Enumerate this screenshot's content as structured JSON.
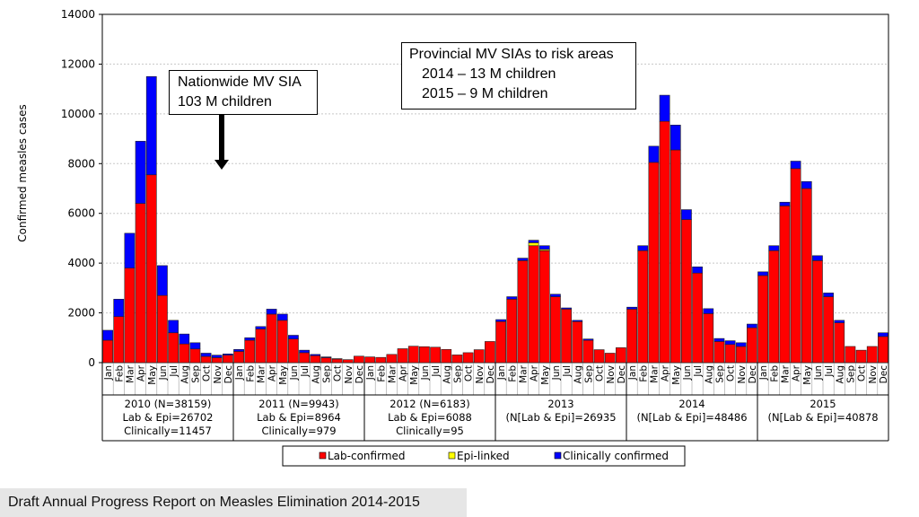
{
  "chart_data": {
    "type": "bar",
    "stacked": true,
    "title": "",
    "ylabel": "Confirmed measles cases",
    "ylim": [
      0,
      14000
    ],
    "yticks": [
      "0",
      "2000",
      "4000",
      "6000",
      "8000",
      "10000",
      "12000",
      "14000"
    ],
    "months": [
      "Jan",
      "Feb",
      "Mar",
      "Apr",
      "May",
      "Jun",
      "Jul",
      "Aug",
      "Sep",
      "Oct",
      "Nov",
      "Dec"
    ],
    "groups": [
      {
        "lines": [
          "2010 (N=38159)",
          "Lab & Epi=26702",
          "Clinically=11457"
        ]
      },
      {
        "lines": [
          "2011 (N=9943)",
          "Lab & Epi=8964",
          "Clinically=979"
        ]
      },
      {
        "lines": [
          "2012 (N=6183)",
          "Lab & Epi=6088",
          "Clinically=95"
        ]
      },
      {
        "lines": [
          "2013",
          "(N[Lab & Epi]=26935"
        ]
      },
      {
        "lines": [
          "2014",
          "(N[Lab & Epi]=48486"
        ]
      },
      {
        "lines": [
          "2015",
          "(N[Lab & Epi]=40878"
        ]
      }
    ],
    "series": [
      {
        "name": "Lab-confirmed",
        "color": "#ff0000",
        "values": [
          900,
          1850,
          3800,
          6400,
          7550,
          2700,
          1200,
          750,
          550,
          250,
          200,
          300,
          450,
          900,
          1350,
          1950,
          1700,
          950,
          400,
          280,
          200,
          150,
          120,
          260,
          230,
          210,
          330,
          560,
          660,
          640,
          620,
          530,
          310,
          400,
          520,
          850,
          1650,
          2550,
          4100,
          4700,
          4500,
          2650,
          2150,
          1650,
          900,
          520,
          380,
          600,
          2150,
          4500,
          8050,
          9700,
          8550,
          5750,
          3600,
          1970,
          850,
          730,
          650,
          1400,
          3500,
          4500,
          6300,
          7800,
          7000,
          4100,
          2650,
          1600,
          650,
          500,
          650,
          1050
        ]
      },
      {
        "name": "Epi-linked",
        "color": "#ffff00",
        "values": [
          0,
          0,
          0,
          0,
          0,
          0,
          0,
          0,
          0,
          0,
          0,
          0,
          0,
          0,
          0,
          0,
          0,
          0,
          0,
          0,
          0,
          0,
          0,
          0,
          0,
          0,
          0,
          0,
          0,
          0,
          0,
          0,
          0,
          0,
          0,
          0,
          0,
          0,
          0,
          120,
          50,
          0,
          0,
          0,
          0,
          0,
          0,
          0,
          0,
          0,
          0,
          0,
          0,
          0,
          0,
          0,
          0,
          0,
          0,
          0,
          0,
          0,
          0,
          0,
          0,
          0,
          0,
          0,
          0,
          0,
          0,
          0
        ]
      },
      {
        "name": "Clinically confirmed",
        "color": "#0000ff",
        "values": [
          400,
          700,
          1400,
          2500,
          3950,
          1200,
          500,
          400,
          250,
          130,
          100,
          50,
          80,
          100,
          100,
          200,
          250,
          150,
          100,
          50,
          30,
          10,
          0,
          0,
          0,
          0,
          0,
          0,
          0,
          0,
          0,
          0,
          0,
          0,
          0,
          0,
          80,
          100,
          100,
          100,
          150,
          100,
          50,
          50,
          50,
          0,
          0,
          0,
          80,
          200,
          650,
          1050,
          1000,
          400,
          250,
          200,
          120,
          150,
          150,
          150,
          150,
          200,
          150,
          300,
          280,
          200,
          150,
          100,
          0,
          0,
          0,
          150
        ]
      }
    ],
    "legend": [
      "Lab-confirmed",
      "Epi-linked",
      "Clinically confirmed"
    ],
    "annotations": [
      "Nationwide MV SIA 103 M children"
    ]
  },
  "callouts": {
    "sia": {
      "line1": "Nationwide MV SIA",
      "line2": "103 M children"
    },
    "provincial": {
      "line1": "Provincial MV SIAs to risk areas",
      "line2": "2014 – 13 M children",
      "line3": "2015 – 9 M children"
    }
  },
  "footer": {
    "text": "Draft Annual Progress Report on Measles Elimination 2014-2015"
  }
}
